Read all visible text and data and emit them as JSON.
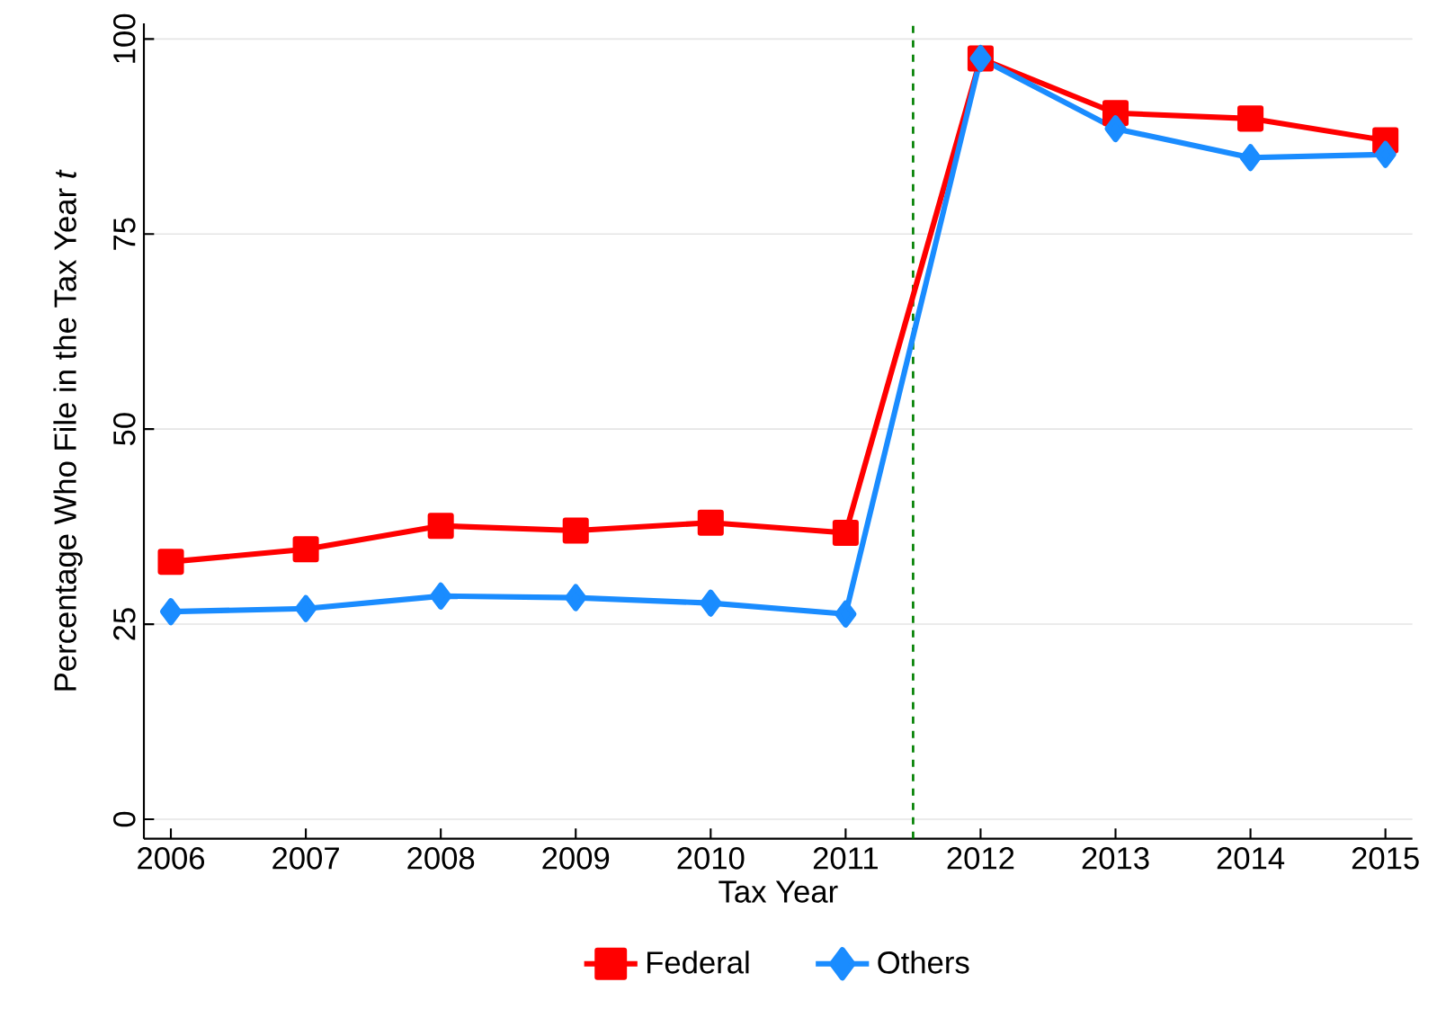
{
  "chart_data": {
    "type": "line",
    "xlabel": "Tax Year",
    "ylabel": "Percentage Who File in the Tax Year *t*",
    "x": [
      2006,
      2007,
      2008,
      2009,
      2010,
      2011,
      2012,
      2013,
      2014,
      2015
    ],
    "series": [
      {
        "name": "Federal",
        "color": "#ff0000",
        "marker": "square",
        "values": [
          33.0,
          34.6,
          37.6,
          37.0,
          38.0,
          36.7,
          97.5,
          90.5,
          89.8,
          87.0
        ]
      },
      {
        "name": "Others",
        "color": "#1a8cff",
        "marker": "diamond",
        "values": [
          26.6,
          27.0,
          28.6,
          28.4,
          27.7,
          26.3,
          97.5,
          88.5,
          84.8,
          85.2
        ]
      }
    ],
    "xlim": [
      2005.8,
      2015.2
    ],
    "ylim": [
      -2.5,
      102
    ],
    "xticks": [
      2006,
      2007,
      2008,
      2009,
      2010,
      2011,
      2012,
      2013,
      2014,
      2015
    ],
    "yticks": [
      0,
      25,
      50,
      75,
      100
    ],
    "ref_lines": [
      {
        "axis": "x",
        "value": 2011.5,
        "color": "#008000",
        "line_style": "dashed"
      }
    ],
    "grid": "y",
    "legend": "bottom",
    "line_style": "solid"
  }
}
